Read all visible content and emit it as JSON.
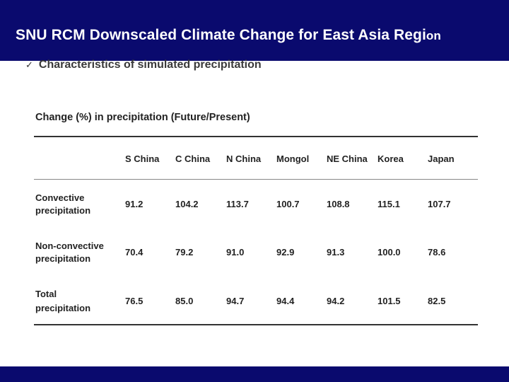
{
  "slide": {
    "title_main": "SNU RCM Downscaled Climate Change for East Asia Regi",
    "title_tail": "on",
    "bullet_mark": "✓",
    "bullet_text": "Characteristics of simulated precipitation",
    "colors": {
      "bar": "#0a0a6e",
      "title_text": "#ffffff"
    }
  },
  "table": {
    "caption": "Change (%) in precipitation (Future/Present)",
    "columns": [
      "S China",
      "C China",
      "N China",
      "Mongol",
      "NE China",
      "Korea",
      "Japan"
    ],
    "rows": [
      {
        "label_line1": "Convective",
        "label_line2": "precipitation",
        "values": [
          "91.2",
          "104.2",
          "113.7",
          "100.7",
          "108.8",
          "115.1",
          "107.7"
        ]
      },
      {
        "label_line1": "Non-convective",
        "label_line2": "precipitation",
        "values": [
          "70.4",
          "79.2",
          "91.0",
          "92.9",
          "91.3",
          "100.0",
          "78.6"
        ]
      },
      {
        "label_line1": "Total",
        "label_line2": "precipitation",
        "values": [
          "76.5",
          "85.0",
          "94.7",
          "94.4",
          "94.2",
          "101.5",
          "82.5"
        ]
      }
    ]
  }
}
